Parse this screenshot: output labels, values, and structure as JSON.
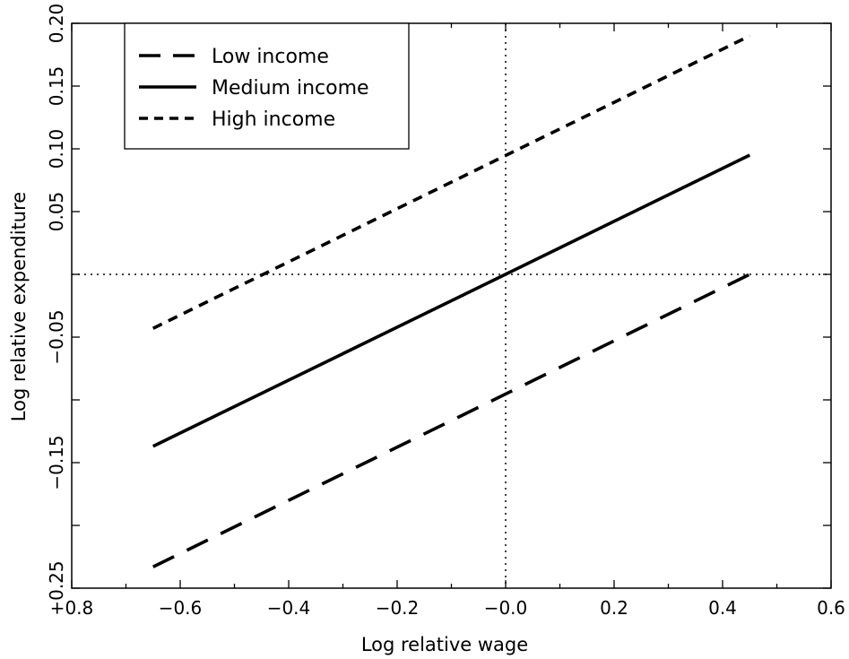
{
  "chart_data": {
    "type": "line",
    "title": "",
    "xlabel": "Log relative wage",
    "ylabel": "Log relative expenditure",
    "xlim": [
      -0.8,
      0.6
    ],
    "ylim": [
      -0.25,
      0.2
    ],
    "x_ticks_labeled": [
      "−0.8",
      "−0.6",
      "−0.4",
      "−0.2",
      "−0.0",
      "0.2",
      "0.4",
      "0.6"
    ],
    "x_ticks_labeled_values": [
      -0.8,
      -0.6,
      -0.4,
      -0.2,
      0.0,
      0.2,
      0.4,
      0.6
    ],
    "y_ticks_labeled": [
      "−0.25",
      "−0.15",
      "−0.05",
      "0.05",
      "0.10",
      "0.15",
      "0.20"
    ],
    "y_ticks_labeled_values": [
      -0.25,
      -0.15,
      -0.05,
      0.05,
      0.1,
      0.15,
      0.2
    ],
    "reference_lines": {
      "x": 0.0,
      "y": 0.0,
      "style": "dotted"
    },
    "grid": false,
    "legend": {
      "placement": "top-left"
    },
    "series": [
      {
        "name": "Low income",
        "style": "long-dash",
        "x": [
          -0.65,
          0.45
        ],
        "y": [
          -0.233,
          0.0
        ]
      },
      {
        "name": "Medium income",
        "style": "solid",
        "x": [
          -0.65,
          0.45
        ],
        "y": [
          -0.137,
          0.095
        ]
      },
      {
        "name": "High income",
        "style": "short-dash",
        "x": [
          -0.65,
          0.45
        ],
        "y": [
          -0.043,
          0.19
        ]
      }
    ]
  }
}
